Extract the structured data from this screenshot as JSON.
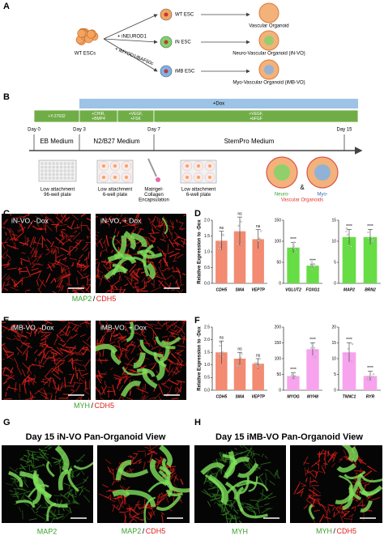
{
  "panel_letters": [
    "A",
    "B",
    "C",
    "D",
    "E",
    "F",
    "G",
    "H"
  ],
  "lineage": {
    "source": "WT ESCs",
    "factors": [
      "+ iNEUROD1",
      "+ iMYOD1/BAF60c"
    ],
    "cells": [
      "WT ESC",
      "iN ESC",
      "iMB ESC"
    ],
    "organoids": [
      "Vascular Organoid",
      "Neuro-Vascular Organoid (iN-VO)",
      "Myo-Vascular Organoid (iMB-VO)"
    ]
  },
  "timeline": {
    "dox": "+Dox",
    "treatments": [
      [
        "+Y-27632"
      ],
      [
        "+CHIR,",
        "+BMP4"
      ],
      [
        "+VEGF,",
        "+FSK"
      ],
      [
        "+VEGF,",
        "+bFGF"
      ]
    ],
    "days": [
      "Day 0",
      "Day 3",
      "Day 7",
      "Day 15"
    ],
    "media": [
      "EB Medium",
      "N2/B27 Medium",
      "StemPro Medium"
    ],
    "steps": [
      [
        "Low attachment",
        "96-well plate"
      ],
      [
        "Low attachment",
        "6-well plate"
      ],
      [
        "Matrigel-",
        "Collagen",
        "Encapsulation"
      ],
      [
        "Low attachment",
        "6-well plate"
      ]
    ],
    "result": {
      "neuro": "Neuro-",
      "amp": "&",
      "myo": "Myo-",
      "vascular": "Vascular Organoids"
    }
  },
  "microscopy": {
    "C": {
      "left": "iN-VO, -Dox",
      "right": "iN-VO, + Dox",
      "stain": [
        "MAP2",
        "/",
        "CDH5"
      ]
    },
    "E": {
      "left": "iMB-VO, -Dox",
      "right": "iMB-VO, + Dox",
      "stain": [
        "MYH",
        "/",
        "CDH5"
      ]
    }
  },
  "pan": {
    "G": {
      "title": "Day 15 iN-VO Pan-Organoid View",
      "left": "MAP2",
      "right": [
        "MAP2",
        "/",
        "CDH5"
      ]
    },
    "H": {
      "title": "Day 15 iMB-VO Pan-Organoid View",
      "left": "MYH",
      "right": [
        "MYH",
        "/",
        "CDH5"
      ]
    }
  },
  "chart_data": [
    {
      "type": "bar",
      "ylabel": "Relative Expression to -Dox",
      "categories": [
        "CDH5",
        "SMA",
        "VEPTP"
      ],
      "values": [
        1.35,
        1.65,
        1.4
      ],
      "errors": [
        0.3,
        0.45,
        0.3
      ],
      "annotations": [
        "ns",
        "ns",
        "ns"
      ],
      "color": "#f28b72",
      "ylim": [
        0,
        2
      ],
      "yticks": [
        {
          "value": 0,
          "label": "0.0"
        },
        {
          "value": 0.5,
          "label": "0.5"
        },
        {
          "value": 1,
          "label": "1.0"
        },
        {
          "value": 1.5,
          "label": "1.5"
        },
        {
          "value": 2,
          "label": "2.0"
        }
      ]
    },
    {
      "type": "bar",
      "categories": [
        "VGLUT2",
        "FOXG1"
      ],
      "values": [
        85,
        42
      ],
      "errors": [
        12,
        4
      ],
      "annotations": [
        "****",
        "****"
      ],
      "color": "#66dd44",
      "ylim": [
        0,
        150
      ],
      "yticks": [
        0,
        50,
        100,
        150
      ]
    },
    {
      "type": "bar",
      "categories": [
        "MAP2",
        "BRN2"
      ],
      "values": [
        11,
        11
      ],
      "errors": [
        1.8,
        1.8
      ],
      "annotations": [
        "****",
        "****"
      ],
      "color": "#66dd44",
      "ylim": [
        0,
        15
      ],
      "yticks": [
        0,
        5,
        10,
        15
      ]
    },
    {
      "type": "bar",
      "ylabel": "Relative Expression to -Dox",
      "categories": [
        "CDH5",
        "SMA",
        "VEPTP"
      ],
      "values": [
        1.5,
        1.25,
        1.05
      ],
      "errors": [
        0.45,
        0.25,
        0.2
      ],
      "annotations": [
        "ns",
        "ns",
        "ns"
      ],
      "color": "#f28b72",
      "ylim": [
        0,
        2.5
      ],
      "yticks": [
        {
          "value": 0,
          "label": "0.0"
        },
        {
          "value": 0.5,
          "label": "0.5"
        },
        {
          "value": 1,
          "label": "1.0"
        },
        {
          "value": 1.5,
          "label": "1.5"
        },
        {
          "value": 2,
          "label": "2.0"
        },
        {
          "value": 2.5,
          "label": "2.5"
        }
      ]
    },
    {
      "type": "bar",
      "categories": [
        "MYOG",
        "MYH8"
      ],
      "values": [
        45,
        130
      ],
      "errors": [
        10,
        20
      ],
      "annotations": [
        "****",
        "****"
      ],
      "color": "#f7a3ee",
      "ylim": [
        0,
        200
      ],
      "yticks": [
        0,
        50,
        100,
        150,
        200
      ]
    },
    {
      "type": "bar",
      "categories": [
        "TNNC1",
        "RYR"
      ],
      "values": [
        12,
        4.5
      ],
      "errors": [
        3,
        1.5
      ],
      "annotations": [
        "****",
        "****"
      ],
      "color": "#f7a3ee",
      "ylim": [
        0,
        20
      ],
      "yticks": [
        0,
        5,
        10,
        15,
        20
      ]
    }
  ]
}
